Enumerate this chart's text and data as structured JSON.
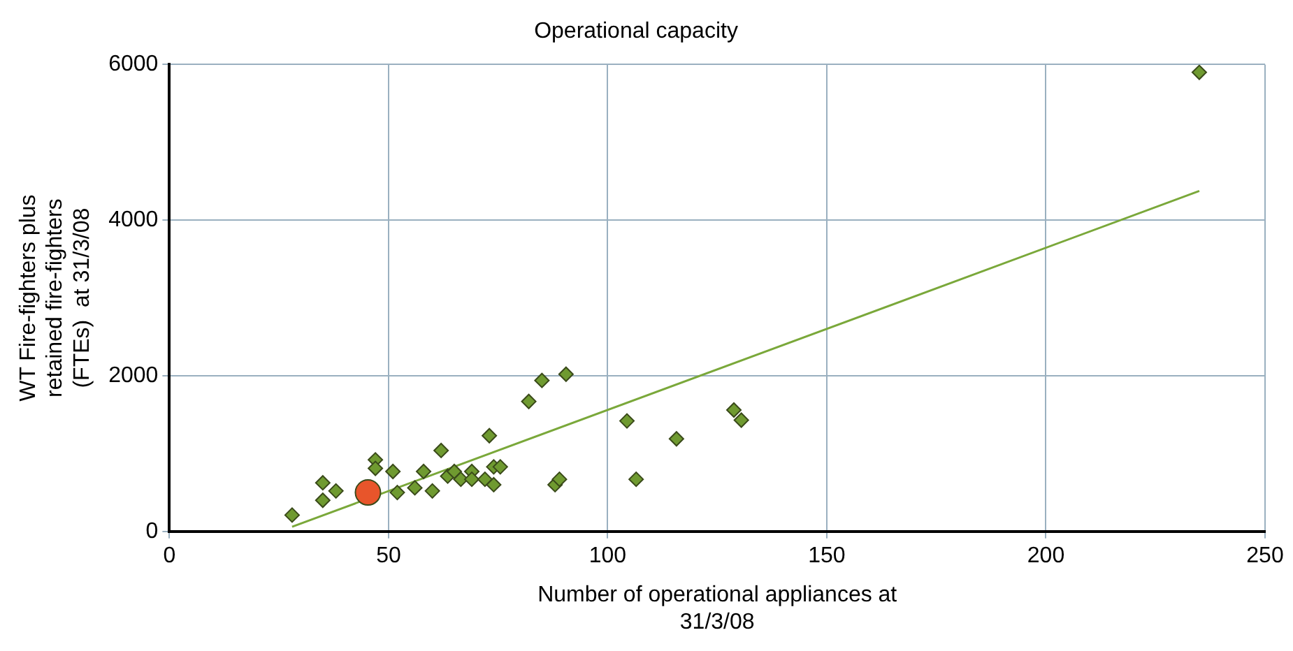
{
  "chart_data": {
    "type": "scatter",
    "title": "Operational capacity",
    "xlabel": "Number of operational appliances at 31/3/08",
    "ylabel": "WT Fire-fighters plus retained fire-fighters (FTEs)  at 31/3/08",
    "xlim": [
      0,
      250
    ],
    "xticks": [
      0,
      50,
      100,
      150,
      200,
      250
    ],
    "ylim": [
      0,
      6000
    ],
    "yticks": [
      0,
      2000,
      4000,
      6000
    ],
    "grid": true,
    "legend": false,
    "marker": "diamond",
    "series": [
      {
        "color": "#6f9a30",
        "x": [
          28,
          35,
          35,
          38,
          47,
          47,
          51,
          52,
          56,
          58,
          60,
          62,
          63.5,
          65,
          66.5,
          69,
          69,
          72,
          73,
          74,
          75.5,
          74,
          82,
          85,
          90.5,
          88,
          89,
          104.4,
          115.7,
          106.5,
          128.8,
          130.5,
          235
        ],
        "values": [
          210,
          625,
          400,
          520,
          920,
          810,
          770,
          500,
          560,
          770,
          520,
          1040,
          710,
          770,
          670,
          770,
          670,
          670,
          1230,
          830,
          830,
          600,
          1670,
          1940,
          2020,
          600,
          670,
          1420,
          1190,
          670,
          1560,
          1430,
          5900
        ]
      },
      {
        "color": "#e8552b",
        "marker": "circle",
        "x": [
          45.3
        ],
        "values": [
          500
        ]
      },
      {
        "type": "line",
        "color": "#7aa83a",
        "marker": "none",
        "x": [
          28,
          235
        ],
        "values": [
          60,
          4375
        ]
      }
    ]
  }
}
